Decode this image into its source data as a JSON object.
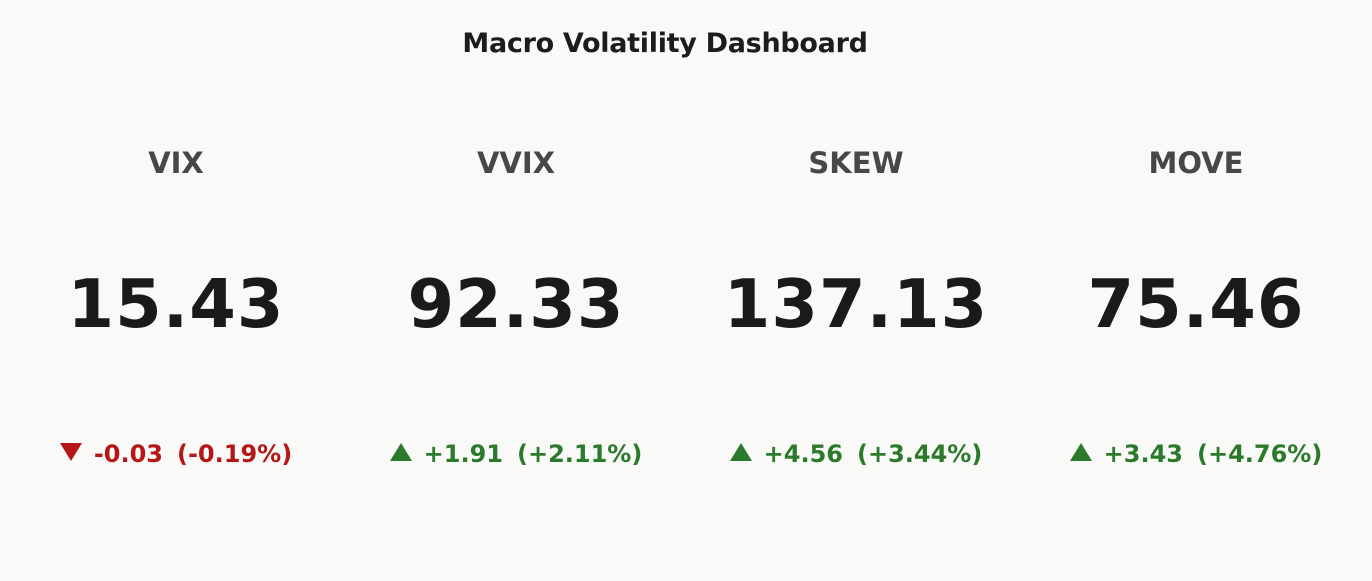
{
  "title": "Macro Volatility Dashboard",
  "indicators": [
    {
      "label": "VIX",
      "value": "15.43",
      "change": "-0.03",
      "pct": "(-0.19%)",
      "direction": "down",
      "color": "#b51717"
    },
    {
      "label": "VVIX",
      "value": "92.33",
      "change": "+1.91",
      "pct": "(+2.11%)",
      "direction": "up",
      "color": "#2b7a2b"
    },
    {
      "label": "SKEW",
      "value": "137.13",
      "change": "+4.56",
      "pct": "(+3.44%)",
      "direction": "up",
      "color": "#2b7a2b"
    },
    {
      "label": "MOVE",
      "value": "75.46",
      "change": "+3.43",
      "pct": "(+4.76%)",
      "direction": "up",
      "color": "#2b7a2b"
    }
  ]
}
